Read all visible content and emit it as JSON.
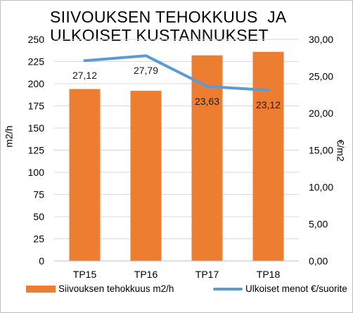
{
  "colors": {
    "bar": "#ed7d31",
    "line": "#5b9bd5",
    "grid": "#d9d9d9",
    "axis": "#bfbfbf"
  },
  "title": {
    "line1": "SIIVOUKSEN TEHOKKUUS  JA",
    "line2": "ULKOISET KUSTANNUKSET"
  },
  "chart_data": {
    "type": "bar",
    "categories": [
      "TP15",
      "TP16",
      "TP17",
      "TP18"
    ],
    "series": [
      {
        "name": "Siivouksen tehokkuus m2/h",
        "type": "bar",
        "axis": "left",
        "values": [
          194,
          192,
          232,
          236
        ]
      },
      {
        "name": "Ulkoiset menot €/suorite",
        "type": "line",
        "axis": "right",
        "values": [
          27.12,
          27.79,
          23.63,
          23.12
        ],
        "labels": [
          "27,12",
          "27,79",
          "23,63",
          "23,12"
        ]
      }
    ],
    "ylabel": "m2/h",
    "ylim": [
      0,
      250
    ],
    "yticks": [
      "0",
      "25",
      "50",
      "75",
      "100",
      "125",
      "150",
      "175",
      "200",
      "225",
      "250"
    ],
    "y2label": "€/m2",
    "y2lim": [
      0,
      30
    ],
    "y2ticks": [
      "0,00",
      "5,00",
      "10,00",
      "15,00",
      "20,00",
      "25,00",
      "30,00"
    ],
    "grid": true,
    "legend_position": "bottom"
  }
}
